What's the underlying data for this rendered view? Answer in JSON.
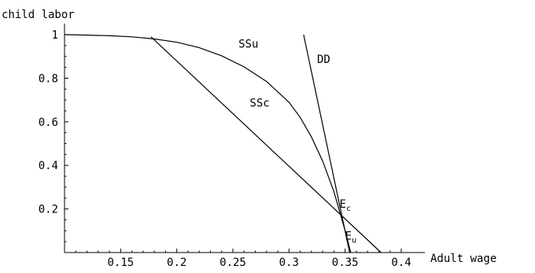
{
  "chart_data": {
    "type": "line",
    "title": "",
    "xlabel": "Adult wage",
    "ylabel": "child labor",
    "xlim": [
      0.1,
      0.4
    ],
    "ylim": [
      0,
      1
    ],
    "x_ticks": [
      {
        "value": 0.15,
        "label": "0.15"
      },
      {
        "value": 0.2,
        "label": "0.2"
      },
      {
        "value": 0.25,
        "label": "0.25"
      },
      {
        "value": 0.3,
        "label": "0.3"
      },
      {
        "value": 0.35,
        "label": "0.35"
      },
      {
        "value": 0.4,
        "label": "0.4"
      }
    ],
    "y_ticks": [
      {
        "value": 0.2,
        "label": "0.2"
      },
      {
        "value": 0.4,
        "label": "0.4"
      },
      {
        "value": 0.6,
        "label": "0.6"
      },
      {
        "value": 0.8,
        "label": "0.8"
      },
      {
        "value": 1,
        "label": "1"
      }
    ],
    "grid": false,
    "series": [
      {
        "name": "SSu",
        "x": [
          0.1,
          0.12,
          0.14,
          0.16,
          0.18,
          0.2,
          0.22,
          0.24,
          0.26,
          0.28,
          0.3,
          0.31,
          0.32,
          0.33,
          0.34,
          0.35,
          0.355
        ],
        "y": [
          1.0,
          0.998,
          0.995,
          0.99,
          0.98,
          0.965,
          0.94,
          0.903,
          0.852,
          0.785,
          0.69,
          0.62,
          0.53,
          0.42,
          0.28,
          0.1,
          0.0
        ]
      },
      {
        "name": "SSc",
        "x": [
          0.177,
          0.382
        ],
        "y": [
          0.99,
          0.0
        ]
      },
      {
        "name": "DD",
        "x": [
          0.313,
          0.354
        ],
        "y": [
          1.0,
          0.0
        ]
      }
    ],
    "annotations": [
      {
        "text": "SSu",
        "x": 0.255,
        "y": 0.94
      },
      {
        "text": "SSc",
        "x": 0.265,
        "y": 0.67
      },
      {
        "text": "DD",
        "x": 0.325,
        "y": 0.87
      },
      {
        "text": "E",
        "sub": "c",
        "x": 0.345,
        "y": 0.205
      },
      {
        "text": "E",
        "sub": "u",
        "x": 0.35,
        "y": 0.06
      }
    ]
  }
}
